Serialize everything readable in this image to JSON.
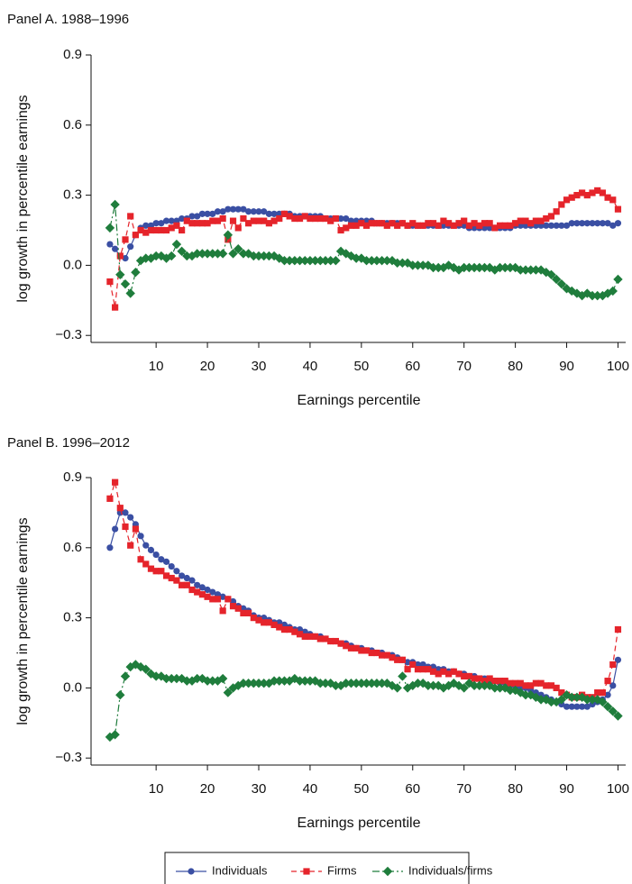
{
  "chart_data": [
    {
      "type": "line",
      "title": "Panel A. 1988–1996",
      "ylabel": "log growth in percentile earnings",
      "xlabel": "Earnings percentile",
      "xlim": [
        -2.5,
        101.5
      ],
      "xticks": [
        10,
        20,
        30,
        40,
        50,
        60,
        70,
        80,
        90,
        100
      ],
      "ylim": [
        -0.33,
        0.9
      ],
      "yticks": [
        {
          "value": -0.3,
          "label": "−0.3"
        },
        {
          "value": 0,
          "label": "0.0"
        },
        0.3,
        0.6,
        0.9
      ],
      "legend": "bottom",
      "x": [
        1,
        2,
        3,
        4,
        5,
        6,
        7,
        8,
        9,
        10,
        11,
        12,
        13,
        14,
        15,
        16,
        17,
        18,
        19,
        20,
        21,
        22,
        23,
        24,
        25,
        26,
        27,
        28,
        29,
        30,
        31,
        32,
        33,
        34,
        35,
        36,
        37,
        38,
        39,
        40,
        41,
        42,
        43,
        44,
        45,
        46,
        47,
        48,
        49,
        50,
        51,
        52,
        53,
        54,
        55,
        56,
        57,
        58,
        59,
        60,
        61,
        62,
        63,
        64,
        65,
        66,
        67,
        68,
        69,
        70,
        71,
        72,
        73,
        74,
        75,
        76,
        77,
        78,
        79,
        80,
        81,
        82,
        83,
        84,
        85,
        86,
        87,
        88,
        89,
        90,
        91,
        92,
        93,
        94,
        95,
        96,
        97,
        98,
        99,
        100
      ],
      "series": [
        {
          "name": "Individuals",
          "color": "#3a4fa3",
          "marker": "circle",
          "line_style": "solid",
          "values": [
            0.09,
            0.07,
            0.04,
            0.03,
            0.08,
            0.13,
            0.16,
            0.17,
            0.17,
            0.18,
            0.18,
            0.19,
            0.19,
            0.19,
            0.2,
            0.2,
            0.21,
            0.21,
            0.22,
            0.22,
            0.22,
            0.23,
            0.23,
            0.24,
            0.24,
            0.24,
            0.24,
            0.23,
            0.23,
            0.23,
            0.23,
            0.22,
            0.22,
            0.22,
            0.22,
            0.22,
            0.21,
            0.21,
            0.21,
            0.21,
            0.21,
            0.21,
            0.2,
            0.2,
            0.2,
            0.2,
            0.2,
            0.19,
            0.19,
            0.19,
            0.19,
            0.19,
            0.18,
            0.18,
            0.18,
            0.18,
            0.18,
            0.18,
            0.17,
            0.17,
            0.17,
            0.17,
            0.17,
            0.17,
            0.17,
            0.17,
            0.17,
            0.17,
            0.17,
            0.17,
            0.16,
            0.16,
            0.16,
            0.16,
            0.16,
            0.16,
            0.16,
            0.16,
            0.16,
            0.17,
            0.17,
            0.17,
            0.17,
            0.17,
            0.17,
            0.17,
            0.17,
            0.17,
            0.17,
            0.17,
            0.18,
            0.18,
            0.18,
            0.18,
            0.18,
            0.18,
            0.18,
            0.18,
            0.17,
            0.18
          ]
        },
        {
          "name": "Firms",
          "color": "#e5242b",
          "marker": "square",
          "line_style": "dashed",
          "values": [
            -0.07,
            -0.18,
            0.04,
            0.11,
            0.21,
            0.13,
            0.15,
            0.14,
            0.15,
            0.15,
            0.15,
            0.15,
            0.16,
            0.17,
            0.15,
            0.19,
            0.18,
            0.18,
            0.18,
            0.18,
            0.19,
            0.19,
            0.2,
            0.11,
            0.19,
            0.16,
            0.2,
            0.18,
            0.19,
            0.19,
            0.19,
            0.18,
            0.19,
            0.2,
            0.22,
            0.21,
            0.2,
            0.2,
            0.21,
            0.2,
            0.2,
            0.2,
            0.2,
            0.19,
            0.2,
            0.15,
            0.16,
            0.17,
            0.17,
            0.18,
            0.17,
            0.18,
            0.18,
            0.18,
            0.17,
            0.18,
            0.17,
            0.18,
            0.17,
            0.18,
            0.17,
            0.17,
            0.18,
            0.18,
            0.17,
            0.19,
            0.18,
            0.17,
            0.18,
            0.19,
            0.17,
            0.18,
            0.17,
            0.18,
            0.18,
            0.16,
            0.17,
            0.17,
            0.17,
            0.18,
            0.19,
            0.19,
            0.18,
            0.19,
            0.19,
            0.2,
            0.21,
            0.23,
            0.26,
            0.28,
            0.29,
            0.3,
            0.31,
            0.3,
            0.31,
            0.32,
            0.31,
            0.29,
            0.28,
            0.24
          ]
        },
        {
          "name": "Individuals/firms",
          "color": "#1f7d3c",
          "marker": "diamond",
          "line_style": "dashdot",
          "values": [
            0.16,
            0.26,
            -0.04,
            -0.08,
            -0.12,
            -0.03,
            0.02,
            0.03,
            0.03,
            0.04,
            0.04,
            0.03,
            0.04,
            0.09,
            0.06,
            0.04,
            0.04,
            0.05,
            0.05,
            0.05,
            0.05,
            0.05,
            0.05,
            0.13,
            0.05,
            0.07,
            0.05,
            0.05,
            0.04,
            0.04,
            0.04,
            0.04,
            0.04,
            0.03,
            0.02,
            0.02,
            0.02,
            0.02,
            0.02,
            0.02,
            0.02,
            0.02,
            0.02,
            0.02,
            0.02,
            0.06,
            0.05,
            0.04,
            0.03,
            0.03,
            0.02,
            0.02,
            0.02,
            0.02,
            0.02,
            0.02,
            0.01,
            0.01,
            0.01,
            0.0,
            0.0,
            0.0,
            0.0,
            -0.01,
            -0.01,
            -0.01,
            0.0,
            -0.01,
            -0.02,
            -0.01,
            -0.01,
            -0.01,
            -0.01,
            -0.01,
            -0.01,
            -0.02,
            -0.01,
            -0.01,
            -0.01,
            -0.01,
            -0.02,
            -0.02,
            -0.02,
            -0.02,
            -0.02,
            -0.03,
            -0.04,
            -0.06,
            -0.08,
            -0.1,
            -0.11,
            -0.12,
            -0.13,
            -0.12,
            -0.13,
            -0.13,
            -0.13,
            -0.12,
            -0.11,
            -0.06
          ]
        }
      ]
    },
    {
      "type": "line",
      "title": "Panel B. 1996–2012",
      "ylabel": "log growth in percentile earnings",
      "xlabel": "Earnings percentile",
      "xlim": [
        -2.5,
        101.5
      ],
      "xticks": [
        10,
        20,
        30,
        40,
        50,
        60,
        70,
        80,
        90,
        100
      ],
      "ylim": [
        -0.33,
        0.9
      ],
      "yticks": [
        {
          "value": -0.3,
          "label": "−0.3"
        },
        {
          "value": 0,
          "label": "0.0"
        },
        0.3,
        0.6,
        0.9
      ],
      "x": [
        1,
        2,
        3,
        4,
        5,
        6,
        7,
        8,
        9,
        10,
        11,
        12,
        13,
        14,
        15,
        16,
        17,
        18,
        19,
        20,
        21,
        22,
        23,
        24,
        25,
        26,
        27,
        28,
        29,
        30,
        31,
        32,
        33,
        34,
        35,
        36,
        37,
        38,
        39,
        40,
        41,
        42,
        43,
        44,
        45,
        46,
        47,
        48,
        49,
        50,
        51,
        52,
        53,
        54,
        55,
        56,
        57,
        58,
        59,
        60,
        61,
        62,
        63,
        64,
        65,
        66,
        67,
        68,
        69,
        70,
        71,
        72,
        73,
        74,
        75,
        76,
        77,
        78,
        79,
        80,
        81,
        82,
        83,
        84,
        85,
        86,
        87,
        88,
        89,
        90,
        91,
        92,
        93,
        94,
        95,
        96,
        97,
        98,
        99,
        100
      ],
      "series": [
        {
          "name": "Individuals",
          "color": "#3a4fa3",
          "marker": "circle",
          "line_style": "solid",
          "values": [
            0.6,
            0.68,
            0.75,
            0.75,
            0.73,
            0.7,
            0.65,
            0.61,
            0.59,
            0.57,
            0.55,
            0.54,
            0.52,
            0.5,
            0.48,
            0.47,
            0.46,
            0.44,
            0.43,
            0.42,
            0.41,
            0.4,
            0.39,
            0.38,
            0.37,
            0.35,
            0.34,
            0.33,
            0.31,
            0.3,
            0.3,
            0.29,
            0.28,
            0.28,
            0.27,
            0.26,
            0.25,
            0.25,
            0.24,
            0.23,
            0.22,
            0.22,
            0.21,
            0.2,
            0.2,
            0.19,
            0.19,
            0.18,
            0.17,
            0.17,
            0.16,
            0.16,
            0.15,
            0.15,
            0.14,
            0.14,
            0.13,
            0.12,
            0.11,
            0.11,
            0.1,
            0.1,
            0.09,
            0.09,
            0.08,
            0.08,
            0.07,
            0.07,
            0.06,
            0.06,
            0.05,
            0.05,
            0.04,
            0.04,
            0.03,
            0.03,
            0.02,
            0.02,
            0.01,
            0.01,
            0.0,
            0.0,
            -0.01,
            -0.02,
            -0.03,
            -0.04,
            -0.05,
            -0.06,
            -0.07,
            -0.08,
            -0.08,
            -0.08,
            -0.08,
            -0.08,
            -0.07,
            -0.06,
            -0.05,
            -0.03,
            0.01,
            0.12
          ]
        },
        {
          "name": "Firms",
          "color": "#e5242b",
          "marker": "square",
          "line_style": "dashed",
          "values": [
            0.81,
            0.88,
            0.77,
            0.69,
            0.61,
            0.68,
            0.55,
            0.53,
            0.51,
            0.5,
            0.5,
            0.48,
            0.47,
            0.46,
            0.44,
            0.44,
            0.42,
            0.41,
            0.4,
            0.39,
            0.38,
            0.38,
            0.33,
            0.38,
            0.35,
            0.34,
            0.32,
            0.32,
            0.3,
            0.29,
            0.28,
            0.28,
            0.27,
            0.26,
            0.25,
            0.25,
            0.24,
            0.23,
            0.22,
            0.22,
            0.22,
            0.21,
            0.21,
            0.2,
            0.2,
            0.19,
            0.18,
            0.17,
            0.17,
            0.16,
            0.16,
            0.15,
            0.15,
            0.14,
            0.14,
            0.13,
            0.12,
            0.12,
            0.08,
            0.1,
            0.08,
            0.08,
            0.08,
            0.07,
            0.06,
            0.07,
            0.06,
            0.07,
            0.06,
            0.05,
            0.05,
            0.04,
            0.04,
            0.03,
            0.04,
            0.03,
            0.03,
            0.03,
            0.02,
            0.02,
            0.02,
            0.01,
            0.01,
            0.02,
            0.02,
            0.01,
            0.01,
            0.0,
            -0.02,
            -0.03,
            -0.04,
            -0.04,
            -0.03,
            -0.04,
            -0.04,
            -0.02,
            -0.02,
            0.03,
            0.1,
            0.25
          ]
        },
        {
          "name": "Individuals/firms",
          "color": "#1f7d3c",
          "marker": "diamond",
          "line_style": "dashdot",
          "values": [
            -0.21,
            -0.2,
            -0.03,
            0.05,
            0.09,
            0.1,
            0.09,
            0.08,
            0.06,
            0.05,
            0.05,
            0.04,
            0.04,
            0.04,
            0.04,
            0.03,
            0.03,
            0.04,
            0.04,
            0.03,
            0.03,
            0.03,
            0.04,
            -0.02,
            0.0,
            0.01,
            0.02,
            0.02,
            0.02,
            0.02,
            0.02,
            0.02,
            0.03,
            0.03,
            0.03,
            0.03,
            0.04,
            0.03,
            0.03,
            0.03,
            0.03,
            0.02,
            0.02,
            0.02,
            0.01,
            0.01,
            0.02,
            0.02,
            0.02,
            0.02,
            0.02,
            0.02,
            0.02,
            0.02,
            0.02,
            0.01,
            0.0,
            0.05,
            0.0,
            0.01,
            0.02,
            0.02,
            0.01,
            0.01,
            0.01,
            0.0,
            0.01,
            0.02,
            0.01,
            0.0,
            0.02,
            0.01,
            0.01,
            0.01,
            0.01,
            0.0,
            0.0,
            0.0,
            -0.01,
            -0.01,
            -0.02,
            -0.03,
            -0.03,
            -0.04,
            -0.05,
            -0.05,
            -0.06,
            -0.06,
            -0.05,
            -0.03,
            -0.04,
            -0.04,
            -0.04,
            -0.05,
            -0.05,
            -0.05,
            -0.06,
            -0.08,
            -0.1,
            -0.12
          ]
        }
      ]
    }
  ]
}
